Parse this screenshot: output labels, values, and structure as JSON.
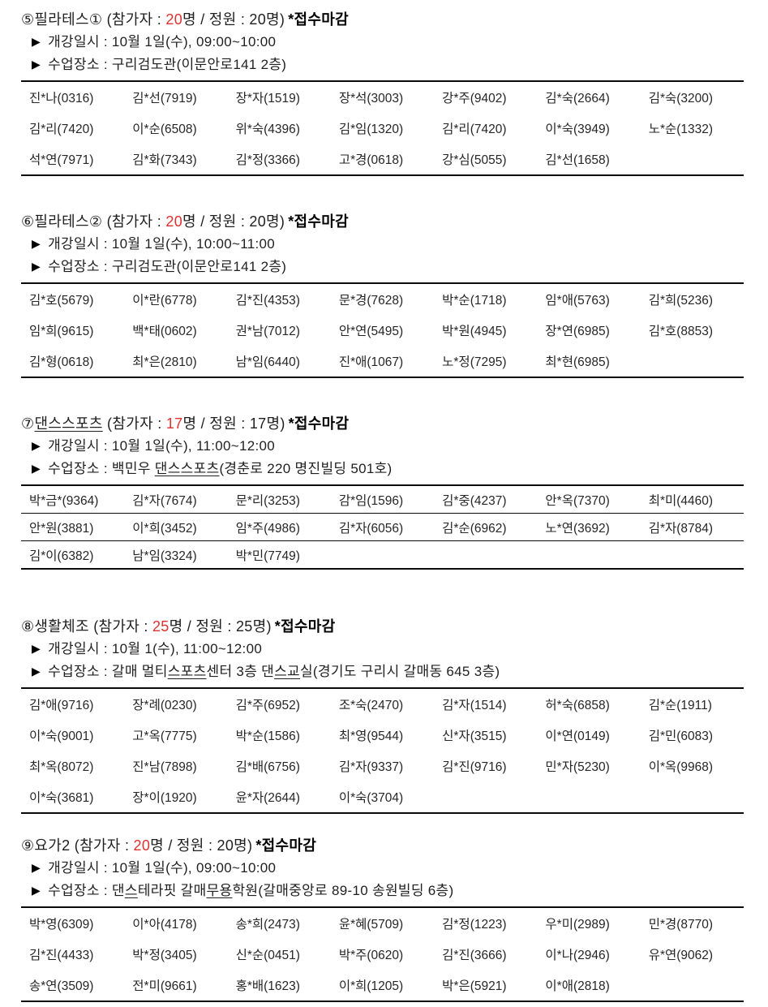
{
  "page": {
    "bullet_glyph": "▶",
    "accent_red": "#e03131",
    "text_color": "#1f1f1f"
  },
  "sections": [
    {
      "id": "5",
      "title_segments": [
        {
          "t": "⑤필라테스①",
          "u": false
        }
      ],
      "participants_pre": " (참가자 : ",
      "count": "20",
      "participants_post": "명 / 정원 : 20명)",
      "closed_label": "*접수마감",
      "schedule": "개강일시 : 10월 1일(수), 09:00~10:00",
      "location_segments": [
        {
          "t": "수업장소 : 구리검도관(이문안로141 2층)",
          "u": false
        }
      ],
      "row_lines": false,
      "rows": [
        [
          "진*나(0316)",
          "김*선(7919)",
          "장*자(1519)",
          "장*석(3003)",
          "강*주(9402)",
          "김*숙(2664)",
          "김*숙(3200)"
        ],
        [
          "김*리(7420)",
          "이*순(6508)",
          "위*숙(4396)",
          "김*임(1320)",
          "김*리(7420)",
          "이*숙(3949)",
          "노*순(1332)"
        ],
        [
          "석*연(7971)",
          "김*화(7343)",
          "김*정(3366)",
          "고*경(0618)",
          "강*심(5055)",
          "김*선(1658)"
        ]
      ]
    },
    {
      "id": "6",
      "title_segments": [
        {
          "t": "⑥필라테스②",
          "u": false
        }
      ],
      "participants_pre": " (참가자 : ",
      "count": "20",
      "participants_post": "명 / 정원 : 20명)",
      "closed_label": "*접수마감",
      "schedule": "개강일시 : 10월 1일(수), 10:00~11:00",
      "location_segments": [
        {
          "t": "수업장소 : 구리검도관(이문안로141 2층)",
          "u": false
        }
      ],
      "row_lines": false,
      "rows": [
        [
          "김*호(5679)",
          "이*란(6778)",
          "김*진(4353)",
          "문*경(7628)",
          "박*순(1718)",
          "임*애(5763)",
          "김*희(5236)"
        ],
        [
          "임*희(9615)",
          "백*태(0602)",
          "권*남(7012)",
          "안*연(5495)",
          "박*원(4945)",
          "장*연(6985)",
          "김*호(8853)"
        ],
        [
          "김*형(0618)",
          "최*은(2810)",
          "남*임(6440)",
          "진*애(1067)",
          "노*정(7295)",
          "최*현(6985)"
        ]
      ]
    },
    {
      "id": "7",
      "title_segments": [
        {
          "t": "⑦",
          "u": false
        },
        {
          "t": "댄스스포츠",
          "u": true
        }
      ],
      "participants_pre": " (참가자 : ",
      "count": "17",
      "participants_post": "명 / 정원 : 17명)",
      "closed_label": "*접수마감",
      "schedule": "개강일시 : 10월 1일(수), 11:00~12:00",
      "location_segments": [
        {
          "t": "수업장소 : 백민우 ",
          "u": false
        },
        {
          "t": "댄스스포츠",
          "u": true
        },
        {
          "t": "(경춘로 220 명진빌딩 501호)",
          "u": false
        }
      ],
      "row_lines": true,
      "rows": [
        [
          "박*금*(9364)",
          "김*자(7674)",
          "문*리(3253)",
          "감*임(1596)",
          "김*중(4237)",
          "안*옥(7370)",
          "최*미(4460)"
        ],
        [
          "안*원(3881)",
          "이*희(3452)",
          "임*주(4986)",
          "김*자(6056)",
          "김*순(6962)",
          "노*연(3692)",
          "김*자(8784)"
        ],
        [
          "김*이(6382)",
          "남*임(3324)",
          "박*민(7749)"
        ]
      ]
    },
    {
      "id": "8",
      "title_segments": [
        {
          "t": "⑧생활체조",
          "u": false
        }
      ],
      "participants_pre": " (참가자 : ",
      "count": "25",
      "participants_post": "명 / 정원 : 25명)",
      "closed_label": "*접수마감",
      "schedule": "개강일시 : 10월 1(수), 11:00~12:00",
      "location_segments": [
        {
          "t": "수업장소 : 갈매 멀티",
          "u": false
        },
        {
          "t": "스포츠",
          "u": true
        },
        {
          "t": "센터 3층 댄",
          "u": false
        },
        {
          "t": "스교",
          "u": true
        },
        {
          "t": "실(경기도 구리시 갈매동 645 3층)",
          "u": false
        }
      ],
      "row_lines": false,
      "rows": [
        [
          "김*애(9716)",
          "장*례(0230)",
          "김*주(6952)",
          "조*숙(2470)",
          "김*자(1514)",
          "허*숙(6858)",
          "김*순(1911)"
        ],
        [
          "이*숙(9001)",
          "고*옥(7775)",
          "박*순(1586)",
          "최*영(9544)",
          "신*자(3515)",
          "이*연(0149)",
          "김*민(6083)"
        ],
        [
          "최*옥(8072)",
          "진*남(7898)",
          "김*배(6756)",
          "김*자(9337)",
          "김*진(9716)",
          "민*자(5230)",
          "이*옥(9968)"
        ],
        [
          "이*숙(3681)",
          "장*이(1920)",
          "윤*자(2644)",
          "이*숙(3704)"
        ]
      ]
    },
    {
      "id": "9",
      "title_segments": [
        {
          "t": "⑨요가2",
          "u": false
        }
      ],
      "participants_pre": " (참가자 : ",
      "count": "20",
      "participants_post": "명 / 정원 : 20명)",
      "closed_label": "*접수마감",
      "schedule": "개강일시 : 10월 1일(수), 09:00~10:00",
      "location_segments": [
        {
          "t": "수업장소 : 댄",
          "u": false
        },
        {
          "t": "스",
          "u": true
        },
        {
          "t": "테라핏 갈매",
          "u": false
        },
        {
          "t": "무용",
          "u": true
        },
        {
          "t": "학원(갈매중앙로 89-10 송원빌딩 6층)",
          "u": false
        }
      ],
      "row_lines": false,
      "rows": [
        [
          "박*영(6309)",
          "이*아(4178)",
          "송*희(2473)",
          "윤*혜(5709)",
          "김*정(1223)",
          "우*미(2989)",
          "민*경(8770)"
        ],
        [
          "김*진(4433)",
          "박*정(3405)",
          "신*순(0451)",
          "박*주(0620)",
          "김*진(3666)",
          "이*나(2946)",
          "유*연(9062)"
        ],
        [
          "송*연(3509)",
          "전*미(9661)",
          "홍*배(1623)",
          "이*희(1205)",
          "박*은(5921)",
          "이*애(2818)"
        ]
      ]
    }
  ]
}
